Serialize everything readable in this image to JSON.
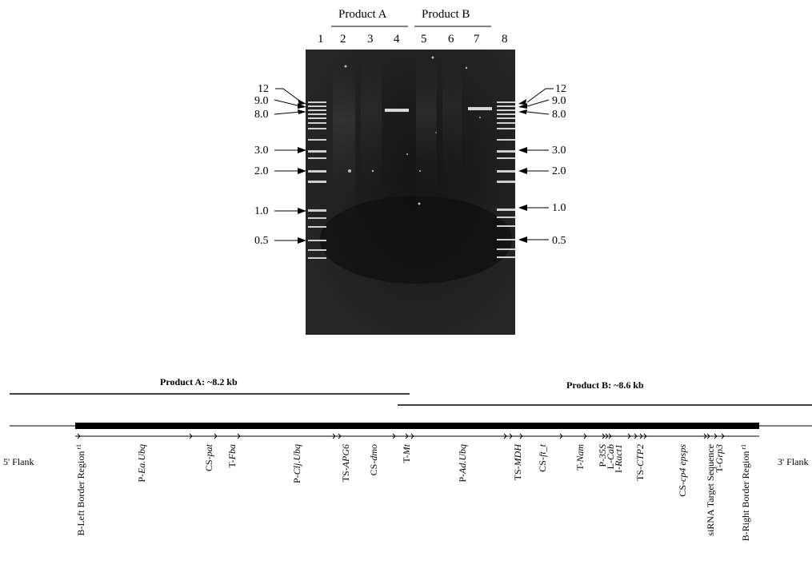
{
  "gel": {
    "products": [
      "Product  A",
      "Product  B"
    ],
    "lanes": [
      "1",
      "2",
      "3",
      "4",
      "5",
      "6",
      "7",
      "8"
    ],
    "markers": [
      "12",
      "9.0",
      "8.0",
      "3.0",
      "2.0",
      "1.0",
      "0.5"
    ]
  },
  "map": {
    "product_a_label": "Product A: ~8.2 kb",
    "product_b_label": "Product B: ~8.6 kb",
    "flank_5": "5' Flank",
    "flank_3": "3' Flank",
    "elements": [
      {
        "pre": "B-Left Border Region",
        "it": "",
        "sup": "r1"
      },
      {
        "pre": "P-",
        "it": "Ea.Ubq",
        "sup": ""
      },
      {
        "pre": "CS-",
        "it": "pat",
        "sup": ""
      },
      {
        "pre": "T-",
        "it": "Fba",
        "sup": ""
      },
      {
        "pre": "P-",
        "it": "Clj.Ubq",
        "sup": ""
      },
      {
        "pre": "TS-",
        "it": "APG6",
        "sup": ""
      },
      {
        "pre": "CS-",
        "it": "dmo",
        "sup": ""
      },
      {
        "pre": "T-",
        "it": "Mt",
        "sup": ""
      },
      {
        "pre": "P-",
        "it": "Ad.Ubq",
        "sup": ""
      },
      {
        "pre": "TS-",
        "it": "MDH",
        "sup": ""
      },
      {
        "pre": "CS-",
        "it": "ft_t",
        "sup": ""
      },
      {
        "pre": "T-",
        "it": "Nam",
        "sup": ""
      },
      {
        "pre": "P-",
        "it": "35S",
        "sup": ""
      },
      {
        "pre": "L-",
        "it": "Cab",
        "sup": ""
      },
      {
        "pre": "I-",
        "it": "Ract1",
        "sup": ""
      },
      {
        "pre": "TS-",
        "it": "CTP2",
        "sup": ""
      },
      {
        "pre": "CS-",
        "it": "cp4 epsps",
        "sup": ""
      },
      {
        "pre": "siRNA Target Sequence",
        "it": "",
        "sup": ""
      },
      {
        "pre": "T-",
        "it": "Grp3",
        "sup": ""
      },
      {
        "pre": "B-Right Border Region",
        "it": "",
        "sup": "r1"
      }
    ]
  }
}
